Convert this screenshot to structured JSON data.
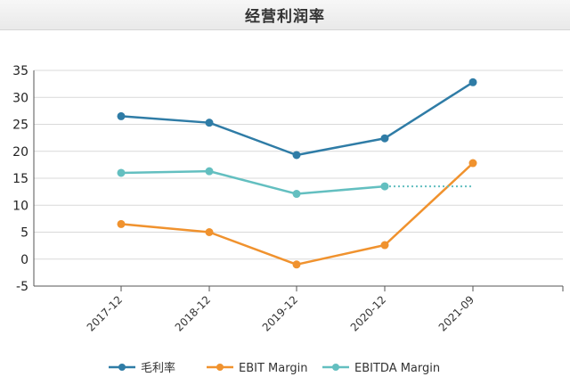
{
  "header": {
    "title": "经营利润率"
  },
  "chart_data": {
    "type": "line",
    "title": "经营利润率",
    "categories": [
      "2017-12",
      "2018-12",
      "2019-12",
      "2020-12",
      "2021-09"
    ],
    "ylim": [
      -5,
      35
    ],
    "yticks": [
      -5,
      0,
      5,
      10,
      15,
      20,
      25,
      30,
      35
    ],
    "grid": true,
    "legend_position": "bottom",
    "series": [
      {
        "name": "毛利率",
        "color": "#2f7ca6",
        "values": [
          26.5,
          25.3,
          19.3,
          22.4,
          32.8
        ],
        "dashed_extension": false
      },
      {
        "name": "EBIT Margin",
        "color": "#f0922e",
        "values": [
          6.5,
          5.0,
          -1.0,
          2.6,
          17.8
        ],
        "dashed_extension": false
      },
      {
        "name": "EBITDA Margin",
        "color": "#63bfc0",
        "values": [
          16.0,
          16.3,
          12.1,
          13.5,
          null
        ],
        "dashed_extension": true,
        "extension_value": 13.5
      }
    ]
  }
}
